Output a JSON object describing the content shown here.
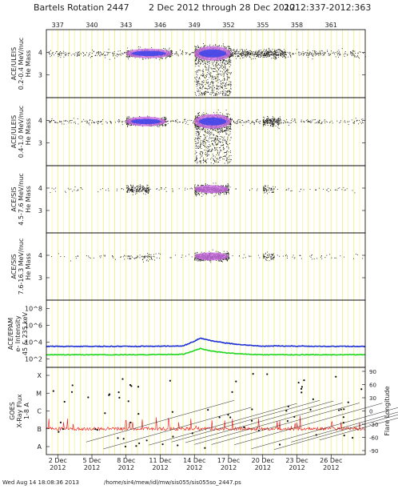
{
  "header": {
    "rotation": "Bartels Rotation 2447",
    "dates": "2 Dec 2012 through 28 Dec 2012",
    "doy": "2012:337-2012:363"
  },
  "footer": {
    "timestamp": "Wed Aug 14 18:08:36 2013",
    "path": "/home/sir4/mew/idl/mw/sis055/sis055so_2447.ps"
  },
  "colors": {
    "grid_yellow": "#f2f28a",
    "electrons_high": "#1c2fd6",
    "electrons_low": "#1fd61f",
    "xray_flux": "#ee1111",
    "dense_core": "#3344ee",
    "dense_mid": "#d070e8",
    "dots": "#111111"
  },
  "chart_data": {
    "type": "scatter",
    "x_range_doy": [
      336,
      364
    ],
    "top_doy_ticks": [
      "337",
      "340",
      "343",
      "346",
      "349",
      "352",
      "355",
      "358",
      "361"
    ],
    "bottom_date_ticks": [
      {
        "doy": 337,
        "day": "2 Dec",
        "year": "2012"
      },
      {
        "doy": 340,
        "day": "5 Dec",
        "year": "2012"
      },
      {
        "doy": 343,
        "day": "8 Dec",
        "year": "2012"
      },
      {
        "doy": 346,
        "day": "11 Dec",
        "year": "2012"
      },
      {
        "doy": 349,
        "day": "14 Dec",
        "year": "2012"
      },
      {
        "doy": 352,
        "day": "17 Dec",
        "year": "2012"
      },
      {
        "doy": 355,
        "day": "20 Dec",
        "year": "2012"
      },
      {
        "doy": 358,
        "day": "23 Dec",
        "year": "2012"
      },
      {
        "doy": 361,
        "day": "26 Dec",
        "year": "2012"
      }
    ],
    "panels": [
      {
        "id": "uleis1",
        "label1": "ACE/ULEIS",
        "label2": "0.2-0.4 MeV/nuc",
        "label3": "He Mass",
        "ylim": [
          2,
          5
        ],
        "yticks": [
          "4",
          "3"
        ],
        "clusters": [
          {
            "doy_start": 337,
            "doy_end": 343,
            "density": "sparse"
          },
          {
            "doy_start": 343,
            "doy_end": 347,
            "density": "dense"
          },
          {
            "doy_start": 349,
            "doy_end": 352.2,
            "density": "very dense"
          },
          {
            "doy_start": 352.2,
            "doy_end": 355,
            "density": "moderate"
          },
          {
            "doy_start": 355,
            "doy_end": 357,
            "density": "moderate"
          },
          {
            "doy_start": 357,
            "doy_end": 364,
            "density": "sparse"
          }
        ]
      },
      {
        "id": "uleis2",
        "label1": "ACE/ULEIS",
        "label2": "0.4-1.0 MeV/nuc",
        "label3": "He Mass",
        "ylim": [
          2,
          5
        ],
        "yticks": [
          "4",
          "3"
        ],
        "clusters": [
          {
            "doy_start": 343,
            "doy_end": 346.5,
            "density": "dense"
          },
          {
            "doy_start": 349,
            "doy_end": 352.2,
            "density": "very dense"
          },
          {
            "doy_start": 355,
            "doy_end": 356.5,
            "density": "moderate"
          }
        ]
      },
      {
        "id": "sis1",
        "label1": "ACE/SIS",
        "label2": "4.5-7.6 MeV/nuc",
        "label3": "He Mass",
        "ylim": [
          2,
          5
        ],
        "yticks": [
          "4",
          "3"
        ],
        "clusters": [
          {
            "doy_start": 343,
            "doy_end": 345,
            "density": "moderate"
          },
          {
            "doy_start": 349,
            "doy_end": 352,
            "density": "dense"
          },
          {
            "doy_start": 355,
            "doy_end": 356,
            "density": "sparse"
          }
        ]
      },
      {
        "id": "sis2",
        "label1": "ACE/SIS",
        "label2": "7.6-16.3 MeV/nuc",
        "label3": "He Mass",
        "ylim": [
          2,
          5
        ],
        "yticks": [
          "4",
          "3"
        ],
        "clusters": [
          {
            "doy_start": 343,
            "doy_end": 346,
            "density": "sparse"
          },
          {
            "doy_start": 349,
            "doy_end": 352,
            "density": "dense"
          },
          {
            "doy_start": 355,
            "doy_end": 356,
            "density": "sparse"
          }
        ]
      },
      {
        "id": "epam",
        "label1": "ACE/EPAM",
        "label2": "e- Intensity",
        "label3": "45 & 235 keV",
        "ylog": [
          1,
          9
        ],
        "yticks": [
          "10^8",
          "10^6",
          "10^4",
          "10^2"
        ],
        "series": [
          {
            "key": "electrons_high",
            "x": [
              336,
              340,
              344,
              348,
              349,
              349.5,
              350,
              351,
              352,
              353,
              354,
              355,
              356,
              360,
              364
            ],
            "y": [
              3.5,
              3.5,
              3.5,
              3.55,
              4.1,
              4.5,
              4.3,
              4.05,
              3.85,
              3.7,
              3.6,
              3.5,
              3.55,
              3.5,
              3.5
            ]
          },
          {
            "key": "electrons_low",
            "x": [
              336,
              340,
              344,
              348,
              349,
              349.5,
              350,
              351,
              352,
              353,
              354,
              355,
              356,
              360,
              364
            ],
            "y": [
              2.5,
              2.5,
              2.5,
              2.55,
              3.0,
              3.25,
              3.05,
              2.85,
              2.7,
              2.6,
              2.55,
              2.5,
              2.5,
              2.5,
              2.5
            ]
          }
        ]
      },
      {
        "id": "goes",
        "label1": "GOES",
        "label2": "X-Ray Flux",
        "label3": "1-8 A",
        "left_ticks": [
          "X",
          "M",
          "C",
          "B",
          "A"
        ],
        "right_label": "Flare Longitude",
        "right_ticks": [
          "90",
          "60",
          "30",
          "0",
          "-30",
          "-60",
          "-90"
        ],
        "xray_baseline_class": "B"
      }
    ]
  }
}
